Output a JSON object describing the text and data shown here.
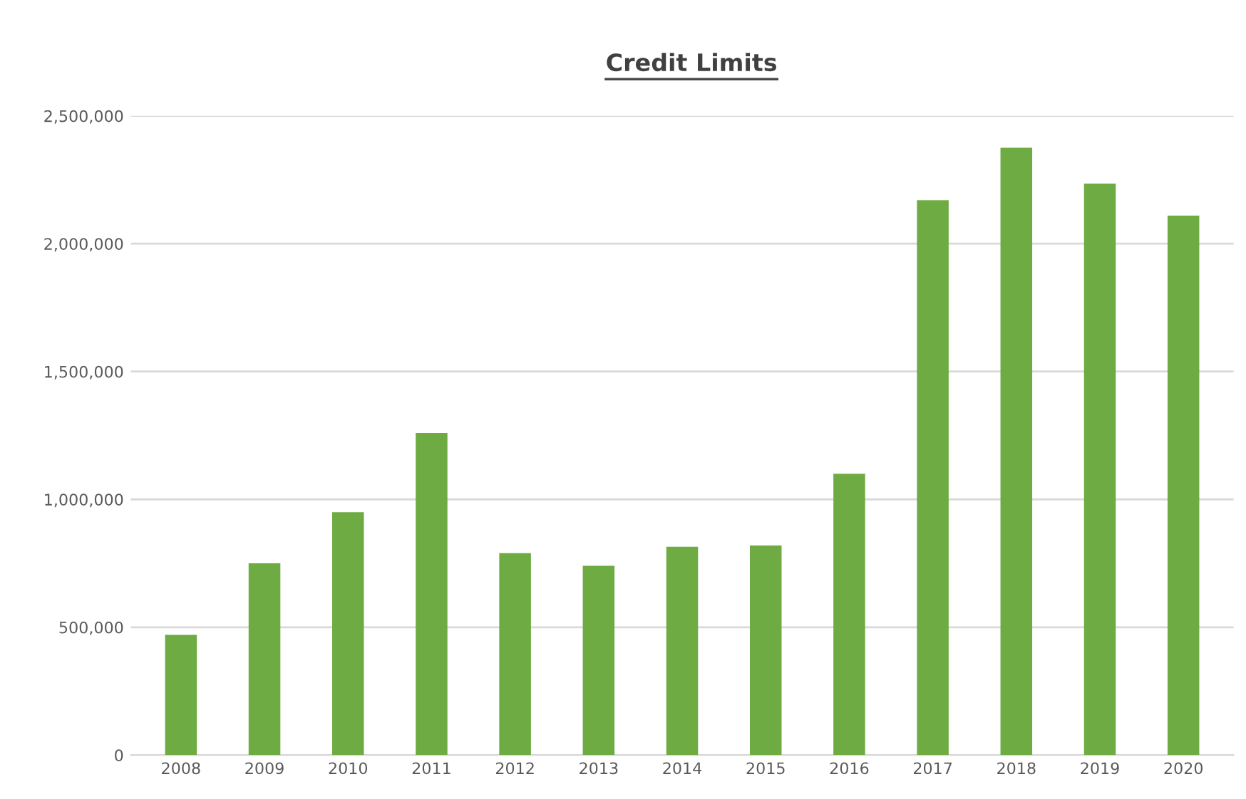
{
  "chart_data": {
    "type": "bar",
    "title": "Credit Limits",
    "categories": [
      "2008",
      "2009",
      "2010",
      "2011",
      "2012",
      "2013",
      "2014",
      "2015",
      "2016",
      "2017",
      "2018",
      "2019",
      "2020"
    ],
    "values": [
      470000,
      750000,
      950000,
      1260000,
      790000,
      740000,
      815000,
      820000,
      1100000,
      2170000,
      2375000,
      2235000,
      2110000
    ],
    "color": "#6fab43",
    "ylim": [
      0,
      2500000
    ],
    "yticks": [
      {
        "value": 0,
        "label": "0"
      },
      {
        "value": 500000,
        "label": "500,000"
      },
      {
        "value": 1000000,
        "label": "1,000,000"
      },
      {
        "value": 1500000,
        "label": "1,500,000"
      },
      {
        "value": 2000000,
        "label": "2,000,000"
      },
      {
        "value": 2500000,
        "label": "2,500,000"
      }
    ],
    "grid": "y"
  }
}
